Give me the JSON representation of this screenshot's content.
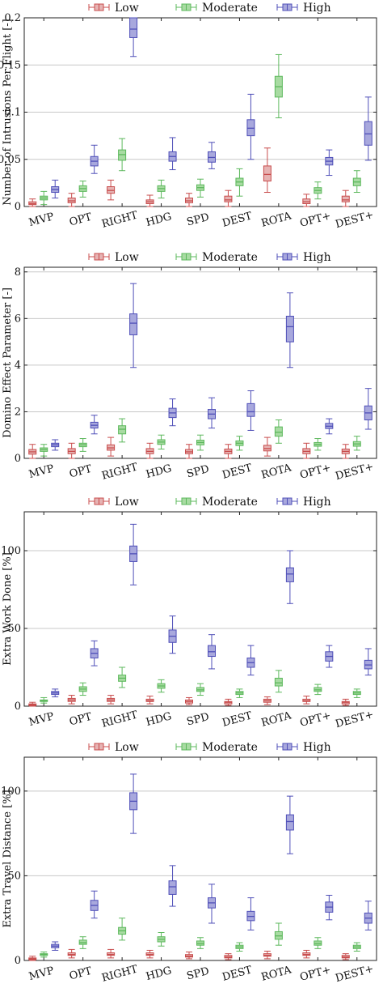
{
  "legend": [
    {
      "key": "low",
      "label": "Low"
    },
    {
      "key": "moderate",
      "label": "Moderate"
    },
    {
      "key": "high",
      "label": "High"
    }
  ],
  "colors": {
    "low": {
      "fill": "#e6b3b3",
      "stroke": "#c84c4c"
    },
    "moderate": {
      "fill": "#a8dba2",
      "stroke": "#5cb85c"
    },
    "high": {
      "fill": "#a8a8dd",
      "stroke": "#4f4fb8"
    },
    "grid": "#c8c8c8",
    "axis": "#222222"
  },
  "chart_data": [
    {
      "type": "box",
      "ylabel": "Number of Intrusions Per Flight [-]",
      "ylim": [
        0,
        0.2
      ],
      "yticks": [
        0,
        0.05,
        0.1,
        0.15,
        0.2
      ],
      "ytick_labels": [
        "0",
        "0.05",
        "0.1",
        "0.15",
        "0.2"
      ],
      "grid": true,
      "legend_position": "top",
      "categories": [
        "MVP",
        "OPT",
        "RIGHT",
        "HDG",
        "SPD",
        "DEST",
        "ROTA",
        "OPT+",
        "DEST+"
      ],
      "series": [
        {
          "name": "Low",
          "boxes": [
            [
              0.0,
              0.002,
              0.003,
              0.005,
              0.008
            ],
            [
              0.0,
              0.004,
              0.006,
              0.009,
              0.014
            ],
            [
              0.007,
              0.014,
              0.017,
              0.021,
              0.028
            ],
            [
              0.0,
              0.003,
              0.005,
              0.007,
              0.012
            ],
            [
              0.0,
              0.004,
              0.006,
              0.009,
              0.014
            ],
            [
              0.0,
              0.005,
              0.007,
              0.011,
              0.017
            ],
            [
              0.015,
              0.027,
              0.034,
              0.043,
              0.062
            ],
            [
              0.0,
              0.003,
              0.005,
              0.008,
              0.013
            ],
            [
              0.0,
              0.005,
              0.007,
              0.011,
              0.017
            ]
          ]
        },
        {
          "name": "Moderate",
          "boxes": [
            [
              0.002,
              0.007,
              0.009,
              0.011,
              0.016
            ],
            [
              0.01,
              0.016,
              0.019,
              0.022,
              0.027
            ],
            [
              0.038,
              0.049,
              0.055,
              0.06,
              0.072
            ],
            [
              0.009,
              0.016,
              0.019,
              0.022,
              0.028
            ],
            [
              0.01,
              0.017,
              0.02,
              0.023,
              0.029
            ],
            [
              0.011,
              0.022,
              0.026,
              0.03,
              0.04
            ],
            [
              0.094,
              0.116,
              0.127,
              0.138,
              0.161
            ],
            [
              0.008,
              0.014,
              0.017,
              0.02,
              0.026
            ],
            [
              0.015,
              0.022,
              0.026,
              0.03,
              0.038
            ]
          ]
        },
        {
          "name": "High",
          "boxes": [
            [
              0.009,
              0.015,
              0.018,
              0.021,
              0.028
            ],
            [
              0.035,
              0.043,
              0.048,
              0.053,
              0.065
            ],
            [
              0.159,
              0.179,
              0.188,
              0.2,
              0.2
            ],
            [
              0.039,
              0.048,
              0.053,
              0.058,
              0.073
            ],
            [
              0.04,
              0.047,
              0.052,
              0.058,
              0.068
            ],
            [
              0.05,
              0.075,
              0.083,
              0.092,
              0.119
            ],
            [
              0.0,
              0.0,
              0.0,
              0.0,
              0.0
            ],
            [
              0.033,
              0.044,
              0.048,
              0.052,
              0.06
            ],
            [
              0.049,
              0.065,
              0.077,
              0.09,
              0.116
            ]
          ]
        }
      ]
    },
    {
      "type": "box",
      "ylabel": "Domino Effect Parameter [-]",
      "ylim": [
        0,
        8.2
      ],
      "yticks": [
        0,
        2,
        4,
        6,
        8
      ],
      "ytick_labels": [
        "0",
        "2",
        "4",
        "6",
        "8"
      ],
      "grid": true,
      "legend_position": "top",
      "categories": [
        "MVP",
        "OPT",
        "RIGHT",
        "HDG",
        "SPD",
        "DEST",
        "ROTA",
        "OPT+",
        "DEST+"
      ],
      "series": [
        {
          "name": "Low",
          "boxes": [
            [
              0.0,
              0.18,
              0.28,
              0.38,
              0.6
            ],
            [
              0.0,
              0.2,
              0.3,
              0.42,
              0.65
            ],
            [
              0.1,
              0.35,
              0.45,
              0.58,
              0.9
            ],
            [
              0.0,
              0.2,
              0.3,
              0.42,
              0.65
            ],
            [
              0.0,
              0.2,
              0.28,
              0.38,
              0.6
            ],
            [
              0.0,
              0.2,
              0.3,
              0.4,
              0.6
            ],
            [
              0.1,
              0.32,
              0.42,
              0.56,
              0.9
            ],
            [
              0.0,
              0.2,
              0.3,
              0.42,
              0.65
            ],
            [
              0.0,
              0.2,
              0.3,
              0.4,
              0.6
            ]
          ]
        },
        {
          "name": "Moderate",
          "boxes": [
            [
              0.1,
              0.3,
              0.38,
              0.45,
              0.6
            ],
            [
              0.3,
              0.5,
              0.58,
              0.65,
              0.85
            ],
            [
              0.7,
              1.05,
              1.25,
              1.4,
              1.7
            ],
            [
              0.4,
              0.6,
              0.7,
              0.8,
              1.0
            ],
            [
              0.35,
              0.58,
              0.68,
              0.78,
              1.0
            ],
            [
              0.35,
              0.55,
              0.65,
              0.75,
              0.95
            ],
            [
              0.65,
              0.95,
              1.12,
              1.35,
              1.65
            ],
            [
              0.35,
              0.52,
              0.6,
              0.68,
              0.85
            ],
            [
              0.35,
              0.52,
              0.62,
              0.72,
              0.95
            ]
          ]
        },
        {
          "name": "High",
          "boxes": [
            [
              0.35,
              0.5,
              0.58,
              0.65,
              0.8
            ],
            [
              1.05,
              1.3,
              1.42,
              1.55,
              1.85
            ],
            [
              3.9,
              5.3,
              5.8,
              6.2,
              7.5
            ],
            [
              1.4,
              1.75,
              1.95,
              2.15,
              2.55
            ],
            [
              1.3,
              1.7,
              1.9,
              2.1,
              2.6
            ],
            [
              1.2,
              1.8,
              2.0,
              2.35,
              2.9
            ],
            [
              3.9,
              5.0,
              5.65,
              6.1,
              7.1
            ],
            [
              1.05,
              1.28,
              1.38,
              1.5,
              1.7
            ],
            [
              1.25,
              1.65,
              1.95,
              2.25,
              3.0
            ]
          ]
        }
      ]
    },
    {
      "type": "box",
      "ylabel": "Extra Work Done [%]",
      "ylim": [
        0,
        125
      ],
      "yticks": [
        0,
        50,
        100
      ],
      "ytick_labels": [
        "0",
        "50",
        "100"
      ],
      "grid": true,
      "legend_position": "top",
      "categories": [
        "MVP",
        "OPT",
        "RIGHT",
        "HDG",
        "SPD",
        "DEST",
        "ROTA",
        "OPT+",
        "DEST+"
      ],
      "series": [
        {
          "name": "Low",
          "boxes": [
            [
              0.0,
              0.5,
              1.0,
              1.5,
              2.5
            ],
            [
              1.5,
              3.0,
              4.0,
              5.0,
              7.0
            ],
            [
              1.5,
              3.0,
              4.0,
              5.0,
              7.0
            ],
            [
              1.5,
              3.0,
              3.5,
              4.5,
              6.5
            ],
            [
              1.0,
              2.0,
              3.0,
              4.0,
              5.5
            ],
            [
              0.5,
              1.5,
              2.5,
              3.0,
              4.5
            ],
            [
              1.0,
              2.5,
              3.5,
              4.5,
              6.0
            ],
            [
              1.5,
              3.0,
              3.5,
              4.5,
              6.5
            ],
            [
              0.5,
              1.5,
              2.5,
              3.0,
              4.5
            ]
          ]
        },
        {
          "name": "Moderate",
          "boxes": [
            [
              2.0,
              3.0,
              3.5,
              4.0,
              5.5
            ],
            [
              7.0,
              9.5,
              11.0,
              12.5,
              15.0
            ],
            [
              12.0,
              16.0,
              18.0,
              20.0,
              25.0
            ],
            [
              9.0,
              11.5,
              13.0,
              14.5,
              17.0
            ],
            [
              7.0,
              9.5,
              10.5,
              12.0,
              14.5
            ],
            [
              5.5,
              7.5,
              8.5,
              9.5,
              11.0
            ],
            [
              9.0,
              13.0,
              15.0,
              18.0,
              23.0
            ],
            [
              7.5,
              9.5,
              10.5,
              12.0,
              14.0
            ],
            [
              5.5,
              7.5,
              8.5,
              9.5,
              11.0
            ]
          ]
        },
        {
          "name": "High",
          "boxes": [
            [
              6.0,
              7.5,
              8.5,
              9.5,
              11.0
            ],
            [
              26.0,
              31.0,
              34.0,
              37.0,
              42.0
            ],
            [
              78.0,
              93.0,
              98.0,
              103.0,
              117.0
            ],
            [
              34.0,
              41.0,
              45.0,
              49.0,
              58.0
            ],
            [
              24.0,
              32.0,
              35.0,
              39.0,
              46.0
            ],
            [
              20.0,
              25.0,
              28.0,
              31.0,
              39.0
            ],
            [
              66.0,
              80.0,
              85.0,
              89.0,
              100.0
            ],
            [
              25.0,
              29.0,
              32.0,
              35.0,
              39.0
            ],
            [
              20.0,
              24.0,
              26.5,
              29.5,
              37.0
            ]
          ]
        }
      ]
    },
    {
      "type": "box",
      "ylabel": "Extra Travel Distance [%]",
      "ylim": [
        0,
        120
      ],
      "yticks": [
        0,
        50,
        100
      ],
      "ytick_labels": [
        "0",
        "50",
        "100"
      ],
      "grid": true,
      "legend_position": "top",
      "categories": [
        "MVP",
        "OPT",
        "RIGHT",
        "HDG",
        "SPD",
        "DEST",
        "ROTA",
        "OPT+",
        "DEST+"
      ],
      "series": [
        {
          "name": "Low",
          "boxes": [
            [
              0.0,
              0.5,
              1.0,
              1.5,
              2.5
            ],
            [
              1.5,
              3.0,
              3.5,
              4.5,
              6.5
            ],
            [
              1.5,
              3.0,
              3.5,
              4.5,
              6.5
            ],
            [
              1.5,
              3.0,
              3.5,
              4.5,
              6.0
            ],
            [
              1.0,
              2.0,
              2.5,
              3.5,
              5.0
            ],
            [
              0.5,
              1.5,
              2.0,
              3.0,
              4.0
            ],
            [
              1.0,
              2.5,
              3.0,
              4.0,
              5.5
            ],
            [
              1.5,
              3.0,
              3.5,
              4.5,
              6.0
            ],
            [
              0.5,
              1.5,
              2.0,
              3.0,
              4.0
            ]
          ]
        },
        {
          "name": "Moderate",
          "boxes": [
            [
              2.0,
              3.0,
              3.5,
              4.0,
              5.0
            ],
            [
              7.0,
              9.5,
              10.5,
              12.0,
              14.0
            ],
            [
              12.0,
              15.5,
              17.5,
              19.5,
              25.0
            ],
            [
              8.5,
              11.0,
              12.5,
              14.0,
              16.5
            ],
            [
              7.0,
              9.0,
              10.0,
              11.5,
              13.5
            ],
            [
              5.5,
              7.0,
              8.0,
              9.0,
              10.5
            ],
            [
              9.0,
              12.5,
              14.5,
              17.0,
              22.0
            ],
            [
              7.0,
              9.0,
              10.0,
              11.5,
              13.5
            ],
            [
              5.5,
              7.0,
              8.0,
              9.0,
              10.5
            ]
          ]
        },
        {
          "name": "High",
          "boxes": [
            [
              6.0,
              7.5,
              8.5,
              9.5,
              11.0
            ],
            [
              25.0,
              29.5,
              32.5,
              35.5,
              41.0
            ],
            [
              75.0,
              89.0,
              94.0,
              99.0,
              110.0
            ],
            [
              32.0,
              39.0,
              43.5,
              47.0,
              56.0
            ],
            [
              22.0,
              31.0,
              34.0,
              37.0,
              45.0
            ],
            [
              18.0,
              23.5,
              26.0,
              29.0,
              37.0
            ],
            [
              63.0,
              77.0,
              82.0,
              86.0,
              97.0
            ],
            [
              24.0,
              28.5,
              31.5,
              34.5,
              38.5
            ],
            [
              18.0,
              22.0,
              25.0,
              28.0,
              35.0
            ]
          ]
        }
      ]
    }
  ]
}
